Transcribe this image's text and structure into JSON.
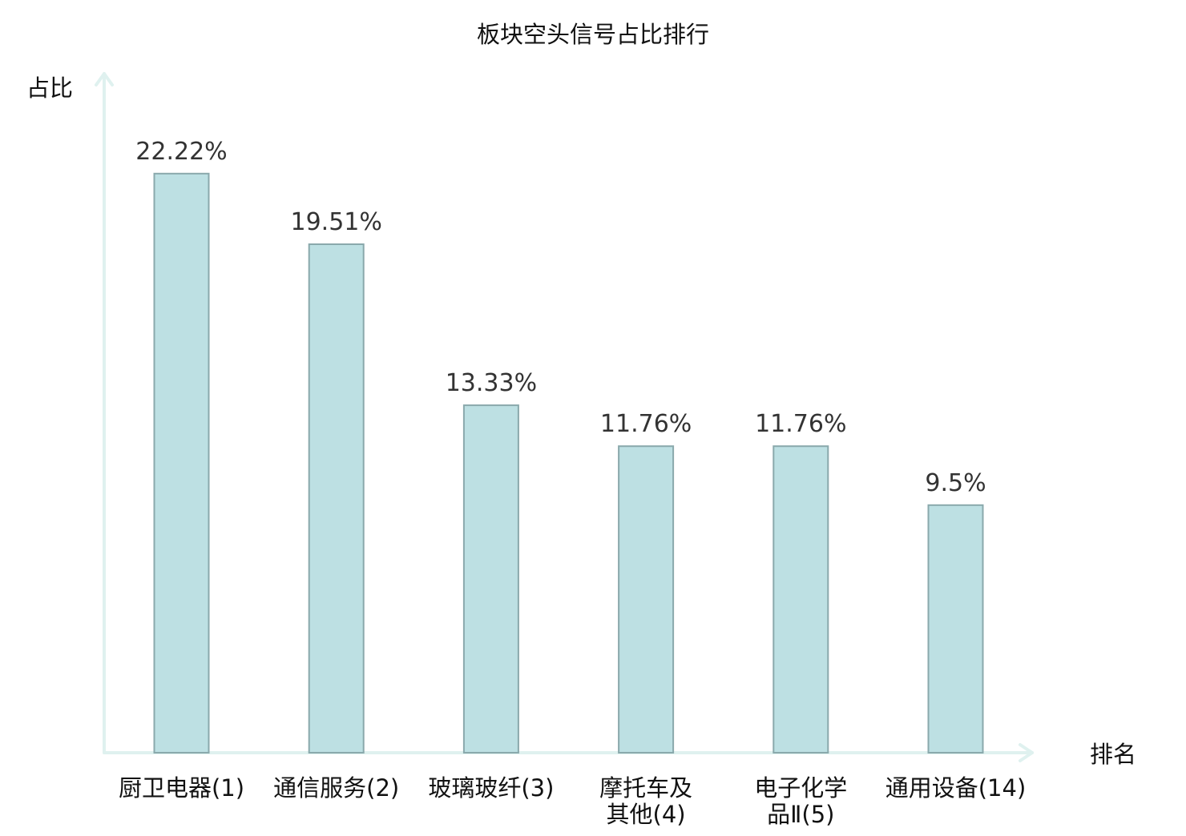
{
  "chart_data": {
    "type": "bar",
    "title": "板块空头信号占比排行",
    "ylabel": "占比",
    "xlabel": "排名",
    "ylim": [
      0,
      25.5
    ],
    "grid": false,
    "legend": "none",
    "categories": [
      {
        "lines": [
          "厨卫电器(1)"
        ],
        "value": 22.22,
        "value_label": "22.22%",
        "highlight": false
      },
      {
        "lines": [
          "通信服务(2)"
        ],
        "value": 19.51,
        "value_label": "19.51%",
        "highlight": false
      },
      {
        "lines": [
          "玻璃玻纤(3)"
        ],
        "value": 13.33,
        "value_label": "13.33%",
        "highlight": false
      },
      {
        "lines": [
          "摩托车及",
          "其他(4)"
        ],
        "value": 11.76,
        "value_label": "11.76%",
        "highlight": false
      },
      {
        "lines": [
          "电子化学",
          "品Ⅱ(5)"
        ],
        "value": 11.76,
        "value_label": "11.76%",
        "highlight": false
      },
      {
        "lines": [
          "通用设备(14)"
        ],
        "value": 9.5,
        "value_label": "9.5%",
        "highlight": true
      }
    ],
    "colors": {
      "bar_fill": "#bde0e3",
      "bar_stroke": "#8aa9ac",
      "axis": "#dff1ef",
      "text": "#111111",
      "value_text": "#333333",
      "highlight_text": "#e0191b"
    }
  }
}
